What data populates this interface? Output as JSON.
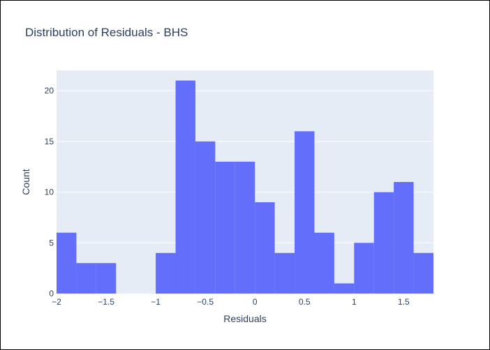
{
  "chart_data": {
    "type": "bar",
    "title": "Distribution of Residuals - BHS",
    "xlabel": "Residuals",
    "ylabel": "Count",
    "bin_size": 0.2,
    "xlim": [
      -2,
      1.8
    ],
    "ylim": [
      0,
      22
    ],
    "bins": [
      {
        "x0": -2.0,
        "x1": -1.8,
        "count": 6
      },
      {
        "x0": -1.8,
        "x1": -1.6,
        "count": 3
      },
      {
        "x0": -1.6,
        "x1": -1.4,
        "count": 3
      },
      {
        "x0": -1.4,
        "x1": -1.2,
        "count": 0
      },
      {
        "x0": -1.2,
        "x1": -1.0,
        "count": 0
      },
      {
        "x0": -1.0,
        "x1": -0.8,
        "count": 4
      },
      {
        "x0": -0.8,
        "x1": -0.6,
        "count": 21
      },
      {
        "x0": -0.6,
        "x1": -0.4,
        "count": 15
      },
      {
        "x0": -0.4,
        "x1": -0.2,
        "count": 13
      },
      {
        "x0": -0.2,
        "x1": 0.0,
        "count": 13
      },
      {
        "x0": 0.0,
        "x1": 0.2,
        "count": 9
      },
      {
        "x0": 0.2,
        "x1": 0.4,
        "count": 4
      },
      {
        "x0": 0.4,
        "x1": 0.6,
        "count": 16
      },
      {
        "x0": 0.6,
        "x1": 0.8,
        "count": 6
      },
      {
        "x0": 0.8,
        "x1": 1.0,
        "count": 1
      },
      {
        "x0": 1.0,
        "x1": 1.2,
        "count": 5
      },
      {
        "x0": 1.2,
        "x1": 1.4,
        "count": 10
      },
      {
        "x0": 1.4,
        "x1": 1.6,
        "count": 11
      },
      {
        "x0": 1.6,
        "x1": 1.8,
        "count": 4
      }
    ],
    "x_ticks": [
      {
        "value": -2,
        "label": "−2"
      },
      {
        "value": -1.5,
        "label": "−1.5"
      },
      {
        "value": -1,
        "label": "−1"
      },
      {
        "value": -0.5,
        "label": "−0.5"
      },
      {
        "value": 0,
        "label": "0"
      },
      {
        "value": 0.5,
        "label": "0.5"
      },
      {
        "value": 1,
        "label": "1"
      },
      {
        "value": 1.5,
        "label": "1.5"
      }
    ],
    "y_ticks": [
      {
        "value": 0,
        "label": "0"
      },
      {
        "value": 5,
        "label": "5"
      },
      {
        "value": 10,
        "label": "10"
      },
      {
        "value": 15,
        "label": "15"
      },
      {
        "value": 20,
        "label": "20"
      }
    ],
    "grid": true,
    "colors": {
      "bar": "#636efa",
      "plot_bg": "#e5ecf6",
      "grid": "#ffffff",
      "text": "#2a3f5f"
    }
  }
}
